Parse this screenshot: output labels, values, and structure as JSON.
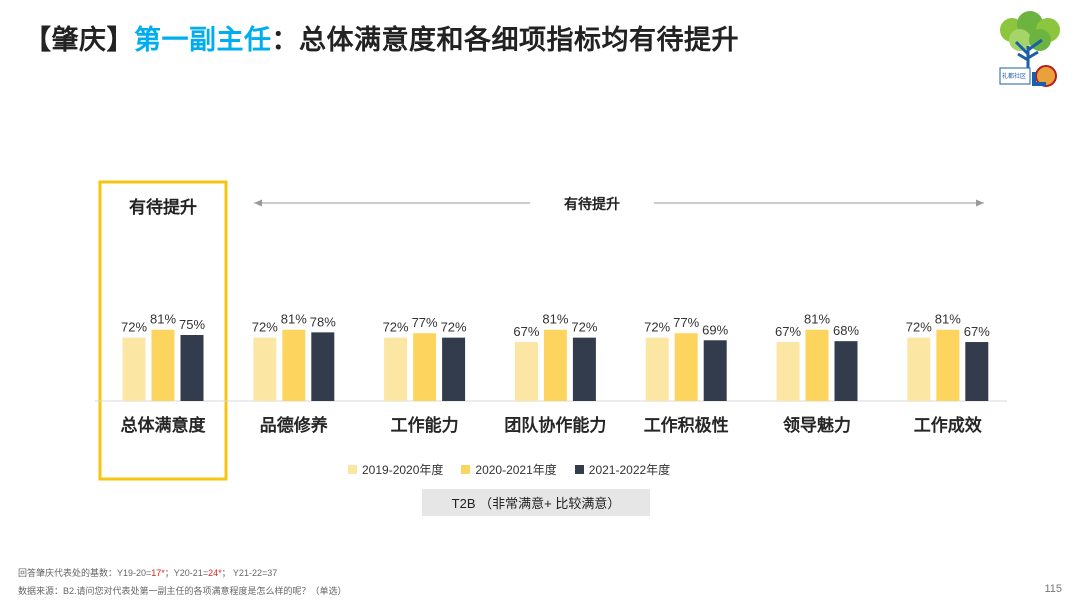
{
  "title": {
    "prefix": "【肇庆】",
    "highlight": "第一副主任",
    "suffix": "：总体满意度和各细项指标均有待提升"
  },
  "logo": {
    "icon": "tree-logo-icon",
    "text": "礼都社区"
  },
  "annotations": {
    "highlight_box_label": "有待提升",
    "arrow_label": "有待提升"
  },
  "t2b_label": "T2B （非常满意+ 比较满意）",
  "footer": {
    "base_prefix": "回答肇庆代表处的基数：Y19-20=",
    "base_y1": "17*",
    "base_mid": "；Y20-21=",
    "base_y2": "24*",
    "base_end": "；  Y21-22=37",
    "source": "数据来源：B2.请问您对代表处第一副主任的各项满意程度是怎么样的呢？（单选）"
  },
  "page_number": "115",
  "chart_data": {
    "type": "bar",
    "categories": [
      "总体满意度",
      "品德修养",
      "工作能力",
      "团队协作能力",
      "工作积极性",
      "领导魅力",
      "工作成效"
    ],
    "series": [
      {
        "name": "2019-2020年度",
        "color": "#FCE6A4",
        "values": [
          72,
          72,
          72,
          67,
          72,
          67,
          72
        ]
      },
      {
        "name": "2020-2021年度",
        "color": "#FDD55E",
        "values": [
          81,
          81,
          77,
          81,
          77,
          81,
          81
        ]
      },
      {
        "name": "2021-2022年度",
        "color": "#323C4C",
        "values": [
          75,
          78,
          72,
          72,
          69,
          68,
          67
        ]
      }
    ],
    "value_suffix": "%",
    "legend_position": "bottom",
    "grid": false,
    "highlight_color": "#F6C511"
  }
}
